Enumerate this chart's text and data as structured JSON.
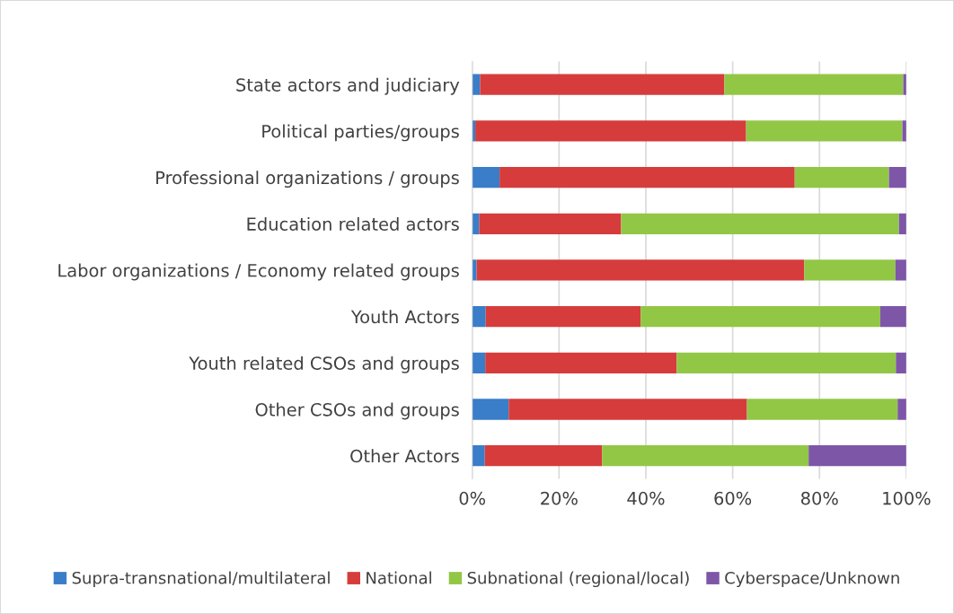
{
  "chart_data": {
    "type": "bar",
    "orientation": "horizontal",
    "stacked": true,
    "categories": [
      "State actors and judiciary",
      "Political parties/groups",
      "Professional organizations / groups",
      "Education related actors",
      "Labor organizations / Economy related groups",
      "Youth Actors",
      "Youth related CSOs and groups",
      "Other CSOs and groups",
      "Other Actors"
    ],
    "series": [
      {
        "name": "Supra-transnational/multilateral",
        "color": "#3a7dc9",
        "values": [
          1.8,
          0.7,
          6.3,
          1.6,
          1.0,
          3.1,
          3.0,
          8.4,
          2.9
        ]
      },
      {
        "name": "National",
        "color": "#d63c3c",
        "values": [
          56.3,
          62.4,
          68.0,
          32.7,
          75.5,
          35.7,
          44.1,
          54.9,
          27.0
        ]
      },
      {
        "name": "Subnational (regional/local)",
        "color": "#92c746",
        "values": [
          41.2,
          36.0,
          21.7,
          64.0,
          21.0,
          55.2,
          50.5,
          34.7,
          47.6
        ]
      },
      {
        "name": "Cyberspace/Unknown",
        "color": "#7e56a8",
        "values": [
          0.7,
          0.9,
          4.0,
          1.7,
          2.5,
          6.0,
          2.4,
          2.0,
          22.5
        ]
      }
    ],
    "xlim": [
      0,
      100
    ],
    "xticks": [
      {
        "value": 0,
        "label": "0%"
      },
      {
        "value": 20,
        "label": "20%"
      },
      {
        "value": 40,
        "label": "40%"
      },
      {
        "value": 60,
        "label": "60%"
      },
      {
        "value": 80,
        "label": "80%"
      },
      {
        "value": 100,
        "label": "100%"
      }
    ],
    "grid": "x",
    "legend": "bottom"
  }
}
